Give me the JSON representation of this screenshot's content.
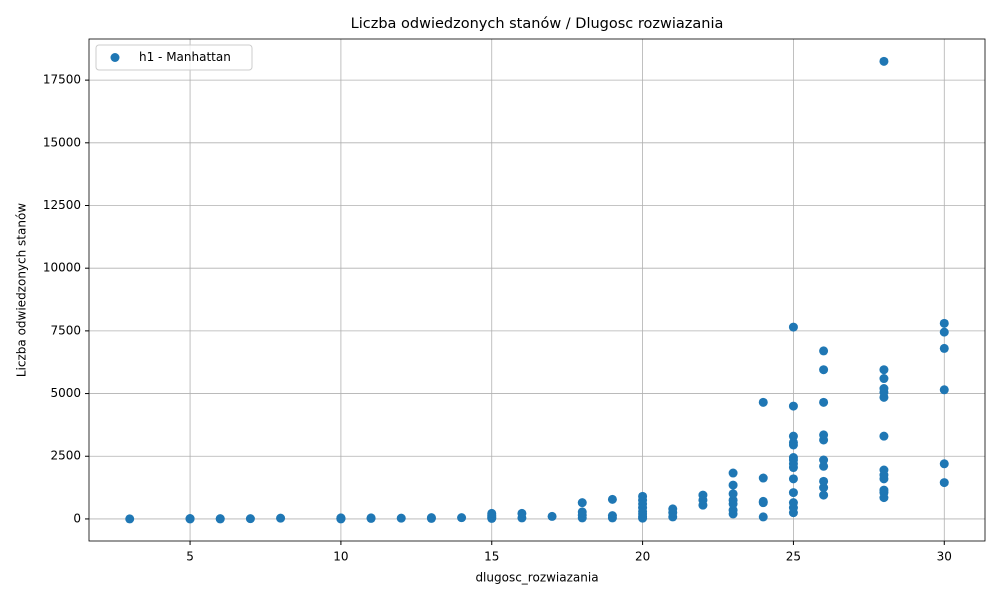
{
  "chart_data": {
    "type": "scatter",
    "title": "Liczba odwiedzonych stanów / Dlugosc rozwiazania",
    "x_label": "dlugosc_rozwiazania",
    "y_label": "Liczba odwiedzonych stanów",
    "xlim": [
      1.65,
      31.35
    ],
    "ylim": [
      -880,
      19140
    ],
    "xticks": [
      5,
      10,
      15,
      20,
      25,
      30
    ],
    "yticks": [
      0,
      2500,
      5000,
      7500,
      10000,
      12500,
      15000,
      17500
    ],
    "grid": true,
    "legend_position": "upper-left",
    "x": [
      3,
      5,
      5,
      5,
      6,
      6,
      7,
      8,
      10,
      10,
      10,
      10,
      10,
      11,
      11,
      12,
      13,
      13,
      14,
      15,
      15,
      15,
      15,
      15,
      16,
      16,
      17,
      18,
      18,
      18,
      18,
      19,
      19,
      19,
      20,
      20,
      20,
      20,
      20,
      20,
      20,
      20,
      21,
      21,
      21,
      22,
      22,
      22,
      23,
      23,
      23,
      23,
      23,
      23,
      23,
      24,
      24,
      24,
      24,
      24,
      25,
      25,
      25,
      25,
      25,
      25,
      25,
      25,
      25,
      25,
      25,
      25,
      25,
      25,
      26,
      26,
      26,
      26,
      26,
      26,
      26,
      26,
      26,
      26,
      28,
      28,
      28,
      28,
      28,
      28,
      28,
      28,
      28,
      28,
      28,
      28,
      28,
      30,
      30,
      30,
      30,
      30,
      30
    ],
    "series": [
      {
        "name": "h1 - Manhattan",
        "color": "#1f77b4",
        "values": [
          0,
          0,
          5,
          15,
          0,
          10,
          10,
          30,
          0,
          10,
          20,
          30,
          40,
          20,
          40,
          30,
          20,
          50,
          50,
          20,
          50,
          100,
          150,
          220,
          40,
          220,
          100,
          40,
          150,
          280,
          650,
          40,
          130,
          780,
          30,
          100,
          200,
          300,
          450,
          600,
          750,
          900,
          80,
          250,
          400,
          550,
          750,
          950,
          200,
          350,
          600,
          750,
          1000,
          1350,
          1830,
          80,
          650,
          700,
          1630,
          4650,
          250,
          450,
          650,
          1050,
          1600,
          2050,
          2200,
          2350,
          2450,
          2950,
          3050,
          3300,
          4500,
          7650,
          950,
          1250,
          1500,
          2100,
          2350,
          3150,
          3350,
          4650,
          5950,
          6700,
          850,
          1050,
          1150,
          1600,
          1750,
          1950,
          3300,
          4850,
          5050,
          5200,
          5600,
          5950,
          18250,
          1450,
          2200,
          5150,
          6800,
          7450,
          7800
        ]
      }
    ]
  }
}
